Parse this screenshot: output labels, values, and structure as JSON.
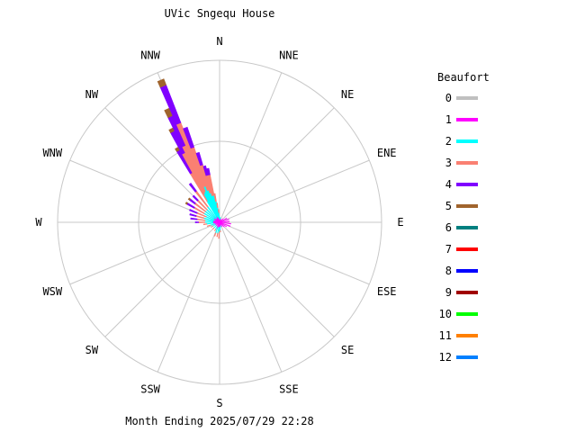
{
  "chart_data": {
    "type": "wind-rose",
    "title": "UVic Sngequ House",
    "footer": "Month Ending 2025/07/29 22:28",
    "directions": [
      "N",
      "NNE",
      "NE",
      "ENE",
      "E",
      "ESE",
      "SE",
      "SSE",
      "S",
      "SSW",
      "SW",
      "WSW",
      "W",
      "WNW",
      "NW",
      "NNW"
    ],
    "legend": {
      "title": "Beaufort",
      "position": "right",
      "entries": [
        {
          "label": "0",
          "color": "#c0c0c0"
        },
        {
          "label": "1",
          "color": "#ff00ff"
        },
        {
          "label": "2",
          "color": "#00ffff"
        },
        {
          "label": "3",
          "color": "#fa8072"
        },
        {
          "label": "4",
          "color": "#8000ff"
        },
        {
          "label": "5",
          "color": "#a0642d"
        },
        {
          "label": "6",
          "color": "#008080"
        },
        {
          "label": "7",
          "color": "#ff0000"
        },
        {
          "label": "8",
          "color": "#0000ff"
        },
        {
          "label": "9",
          "color": "#a00000"
        },
        {
          "label": "10",
          "color": "#00ff00"
        },
        {
          "label": "11",
          "color": "#ff8000"
        },
        {
          "label": "12",
          "color": "#0080ff"
        }
      ]
    },
    "max_radius": 1.0,
    "rings": 2,
    "sectors": [
      {
        "dir": 330.0,
        "segments": [
          0.0,
          0.03,
          0.12,
          0.2,
          0.16,
          0.02
        ]
      },
      {
        "dir": 332.5,
        "segments": [
          0.0,
          0.04,
          0.16,
          0.28,
          0.15,
          0.02
        ]
      },
      {
        "dir": 335.0,
        "segments": [
          0.0,
          0.04,
          0.17,
          0.31,
          0.2,
          0.05
        ]
      },
      {
        "dir": 337.5,
        "segments": [
          0.0,
          0.04,
          0.2,
          0.42,
          0.25,
          0.04
        ]
      },
      {
        "dir": 340.0,
        "segments": [
          0.0,
          0.03,
          0.18,
          0.28,
          0.13
        ]
      },
      {
        "dir": 342.5,
        "segments": [
          0.0,
          0.03,
          0.16,
          0.18,
          0.08
        ]
      },
      {
        "dir": 345.0,
        "segments": [
          0.0,
          0.03,
          0.14,
          0.13,
          0.06
        ]
      },
      {
        "dir": 347.5,
        "segments": [
          0.0,
          0.03,
          0.14,
          0.13,
          0.04
        ]
      },
      {
        "dir": 350.0,
        "segments": [
          0.0,
          0.03,
          0.1,
          0.05
        ]
      },
      {
        "dir": 352.5,
        "segments": [
          0.0,
          0.02,
          0.07,
          0.03
        ]
      },
      {
        "dir": 355.0,
        "segments": [
          0.0,
          0.02,
          0.04,
          0.02
        ]
      },
      {
        "dir": 357.5,
        "segments": [
          0.0,
          0.02,
          0.02
        ]
      },
      {
        "dir": 0.0,
        "segments": [
          0.0,
          0.02,
          0.01
        ]
      },
      {
        "dir": 10.0,
        "segments": [
          0.0,
          0.02,
          0.01
        ]
      },
      {
        "dir": 25.0,
        "segments": [
          0.0,
          0.02
        ]
      },
      {
        "dir": 45.0,
        "segments": [
          0.0,
          0.03
        ]
      },
      {
        "dir": 60.0,
        "segments": [
          0.0,
          0.05
        ]
      },
      {
        "dir": 72.5,
        "segments": [
          0.0,
          0.06
        ]
      },
      {
        "dir": 85.0,
        "segments": [
          0.0,
          0.06
        ]
      },
      {
        "dir": 97.5,
        "segments": [
          0.0,
          0.07
        ]
      },
      {
        "dir": 110.0,
        "segments": [
          0.0,
          0.07
        ]
      },
      {
        "dir": 122.5,
        "segments": [
          0.0,
          0.05
        ]
      },
      {
        "dir": 135.0,
        "segments": [
          0.0,
          0.04
        ]
      },
      {
        "dir": 150.0,
        "segments": [
          0.0,
          0.03
        ]
      },
      {
        "dir": 165.0,
        "segments": [
          0.0,
          0.02,
          0.01
        ]
      },
      {
        "dir": 175.0,
        "segments": [
          0.0,
          0.03,
          0.02,
          0.01
        ]
      },
      {
        "dir": 182.5,
        "segments": [
          0.0,
          0.03,
          0.03,
          0.04
        ]
      },
      {
        "dir": 190.0,
        "segments": [
          0.0,
          0.03,
          0.04,
          0.02
        ]
      },
      {
        "dir": 200.0,
        "segments": [
          0.0,
          0.04,
          0.03,
          0.02
        ]
      },
      {
        "dir": 210.0,
        "segments": [
          0.0,
          0.03,
          0.02,
          0.01
        ]
      },
      {
        "dir": 225.0,
        "segments": [
          0.0,
          0.03,
          0.02,
          0.01
        ]
      },
      {
        "dir": 240.0,
        "segments": [
          0.0,
          0.03,
          0.02,
          0.01
        ]
      },
      {
        "dir": 252.5,
        "segments": [
          0.0,
          0.03,
          0.03,
          0.02
        ]
      },
      {
        "dir": 262.5,
        "segments": [
          0.0,
          0.04,
          0.04,
          0.02
        ]
      },
      {
        "dir": 270.0,
        "segments": [
          0.0,
          0.04,
          0.05,
          0.04,
          0.02
        ]
      },
      {
        "dir": 277.5,
        "segments": [
          0.0,
          0.04,
          0.05,
          0.05,
          0.04
        ]
      },
      {
        "dir": 285.0,
        "segments": [
          0.0,
          0.04,
          0.06,
          0.05,
          0.04
        ]
      },
      {
        "dir": 292.5,
        "segments": [
          0.0,
          0.03,
          0.06,
          0.06,
          0.05
        ]
      },
      {
        "dir": 300.0,
        "segments": [
          0.0,
          0.04,
          0.07,
          0.07,
          0.05,
          0.01
        ]
      },
      {
        "dir": 307.5,
        "segments": [
          0.0,
          0.04,
          0.07,
          0.08,
          0.04,
          0.01
        ]
      },
      {
        "dir": 315.0,
        "segments": [
          0.0,
          0.03,
          0.08,
          0.08,
          0.04
        ]
      },
      {
        "dir": 322.5,
        "segments": [
          0.0,
          0.03,
          0.09,
          0.12,
          0.06
        ]
      }
    ]
  }
}
